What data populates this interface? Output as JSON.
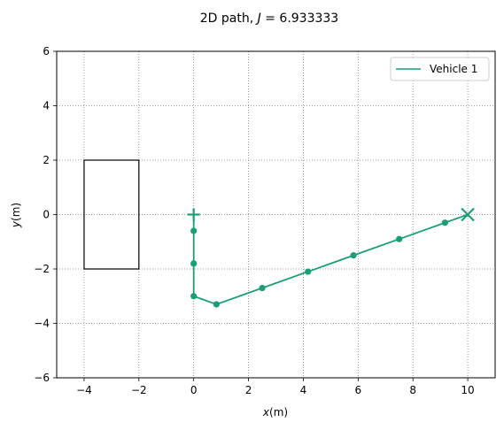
{
  "chart_data": {
    "type": "line",
    "title": "2D path, J = 6.933333",
    "title_parts": {
      "prefix": "2D path, ",
      "var": "J",
      "suffix": " = 6.933333"
    },
    "xlabel": {
      "var": "x",
      "unit": "(m)"
    },
    "ylabel": {
      "var": "y",
      "unit": "(m)"
    },
    "xlim": [
      -5,
      11
    ],
    "ylim": [
      -6,
      6
    ],
    "x_ticks": [
      -4,
      -2,
      0,
      2,
      4,
      6,
      8,
      10
    ],
    "y_ticks": [
      -6,
      -4,
      -2,
      0,
      2,
      4,
      6
    ],
    "x_tick_labels": [
      "−4",
      "−2",
      "0",
      "2",
      "4",
      "6",
      "8",
      "10"
    ],
    "y_tick_labels": [
      "−6",
      "−4",
      "−2",
      "0",
      "2",
      "4",
      "6"
    ],
    "grid": true,
    "legend_position": "top-right",
    "series": [
      {
        "name": "Vehicle 1",
        "color": "#1b9e77",
        "x": [
          0,
          0,
          0,
          0,
          0.83,
          2.5,
          4.17,
          5.83,
          7.5,
          9.17,
          10
        ],
        "y": [
          0,
          -0.6,
          -1.8,
          -3.0,
          -3.3,
          -2.7,
          -2.1,
          -1.5,
          -0.9,
          -0.3,
          0
        ],
        "start": {
          "x": 0,
          "y": 0,
          "marker": "plus"
        },
        "end": {
          "x": 10,
          "y": 0,
          "marker": "x"
        }
      }
    ],
    "obstacles": [
      {
        "x_min": -4,
        "x_max": -2,
        "y_min": -2,
        "y_max": 2,
        "color": "#000000"
      }
    ]
  }
}
